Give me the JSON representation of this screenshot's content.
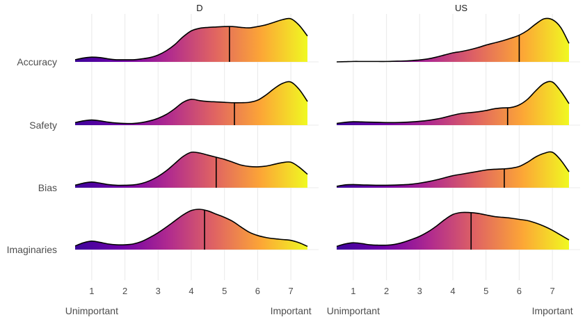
{
  "chart_data": {
    "type": "ridgeline",
    "facets": [
      "D",
      "US"
    ],
    "rows": [
      "Accuracy",
      "Safety",
      "Bias",
      "Imaginaries"
    ],
    "x_ticks": [
      1,
      2,
      3,
      4,
      5,
      6,
      7
    ],
    "xlim": [
      0.5,
      7.5
    ],
    "x_end_labels": {
      "low": "Unimportant",
      "high": "Important"
    },
    "density_x": [
      0.5,
      0.75,
      1.0,
      1.25,
      1.5,
      1.75,
      2.0,
      2.25,
      2.5,
      2.75,
      3.0,
      3.25,
      3.5,
      3.75,
      4.0,
      4.25,
      4.5,
      4.75,
      5.0,
      5.25,
      5.5,
      5.75,
      6.0,
      6.25,
      6.5,
      6.75,
      7.0,
      7.25,
      7.5
    ],
    "fill_gradient": [
      "#3d049a",
      "#6f00a8",
      "#b02a8f",
      "#e06462",
      "#fca636",
      "#f0f921"
    ],
    "grid": true,
    "panels": [
      {
        "facet": "D",
        "row": "Accuracy",
        "median": 5.15,
        "density": [
          0.05,
          0.09,
          0.11,
          0.1,
          0.07,
          0.05,
          0.05,
          0.05,
          0.07,
          0.1,
          0.16,
          0.26,
          0.4,
          0.58,
          0.72,
          0.78,
          0.8,
          0.81,
          0.82,
          0.82,
          0.8,
          0.79,
          0.82,
          0.86,
          0.92,
          0.98,
          1.0,
          0.85,
          0.6
        ]
      },
      {
        "facet": "D",
        "row": "Safety",
        "median": 5.3,
        "density": [
          0.06,
          0.1,
          0.12,
          0.1,
          0.07,
          0.05,
          0.04,
          0.04,
          0.06,
          0.1,
          0.16,
          0.25,
          0.38,
          0.53,
          0.6,
          0.57,
          0.55,
          0.54,
          0.53,
          0.52,
          0.52,
          0.53,
          0.58,
          0.7,
          0.85,
          0.97,
          1.0,
          0.83,
          0.55
        ]
      },
      {
        "facet": "D",
        "row": "Bias",
        "median": 4.75,
        "density": [
          0.07,
          0.13,
          0.16,
          0.13,
          0.09,
          0.07,
          0.07,
          0.08,
          0.12,
          0.2,
          0.32,
          0.48,
          0.68,
          0.88,
          1.0,
          0.98,
          0.92,
          0.86,
          0.8,
          0.72,
          0.64,
          0.6,
          0.59,
          0.61,
          0.66,
          0.71,
          0.72,
          0.58,
          0.38
        ]
      },
      {
        "facet": "D",
        "row": "Imaginaries",
        "median": 4.4,
        "density": [
          0.09,
          0.17,
          0.21,
          0.18,
          0.14,
          0.12,
          0.12,
          0.14,
          0.2,
          0.3,
          0.42,
          0.56,
          0.71,
          0.86,
          0.97,
          1.0,
          0.96,
          0.88,
          0.8,
          0.7,
          0.56,
          0.43,
          0.35,
          0.3,
          0.27,
          0.25,
          0.23,
          0.17,
          0.08
        ]
      },
      {
        "facet": "US",
        "row": "Accuracy",
        "median": 6.0,
        "density": [
          0.0,
          0.005,
          0.01,
          0.01,
          0.01,
          0.01,
          0.01,
          0.015,
          0.02,
          0.03,
          0.045,
          0.07,
          0.11,
          0.16,
          0.21,
          0.24,
          0.28,
          0.33,
          0.39,
          0.44,
          0.49,
          0.55,
          0.62,
          0.73,
          0.88,
          1.0,
          0.98,
          0.8,
          0.43
        ]
      },
      {
        "facet": "US",
        "row": "Safety",
        "median": 5.65,
        "density": [
          0.04,
          0.065,
          0.08,
          0.075,
          0.07,
          0.065,
          0.06,
          0.06,
          0.065,
          0.075,
          0.09,
          0.11,
          0.14,
          0.18,
          0.23,
          0.27,
          0.29,
          0.31,
          0.34,
          0.38,
          0.4,
          0.41,
          0.47,
          0.6,
          0.8,
          0.97,
          1.0,
          0.79,
          0.5
        ]
      },
      {
        "facet": "US",
        "row": "Bias",
        "median": 5.55,
        "density": [
          0.04,
          0.08,
          0.09,
          0.08,
          0.075,
          0.07,
          0.07,
          0.075,
          0.085,
          0.1,
          0.13,
          0.17,
          0.22,
          0.28,
          0.34,
          0.38,
          0.42,
          0.46,
          0.5,
          0.52,
          0.53,
          0.55,
          0.6,
          0.72,
          0.87,
          0.97,
          1.0,
          0.78,
          0.45
        ]
      },
      {
        "facet": "US",
        "row": "Imaginaries",
        "median": 4.55,
        "density": [
          0.08,
          0.14,
          0.17,
          0.15,
          0.12,
          0.11,
          0.11,
          0.13,
          0.18,
          0.25,
          0.33,
          0.44,
          0.58,
          0.74,
          0.87,
          0.92,
          0.92,
          0.9,
          0.86,
          0.82,
          0.8,
          0.78,
          0.75,
          0.72,
          0.66,
          0.58,
          0.48,
          0.36,
          0.24
        ]
      }
    ]
  }
}
